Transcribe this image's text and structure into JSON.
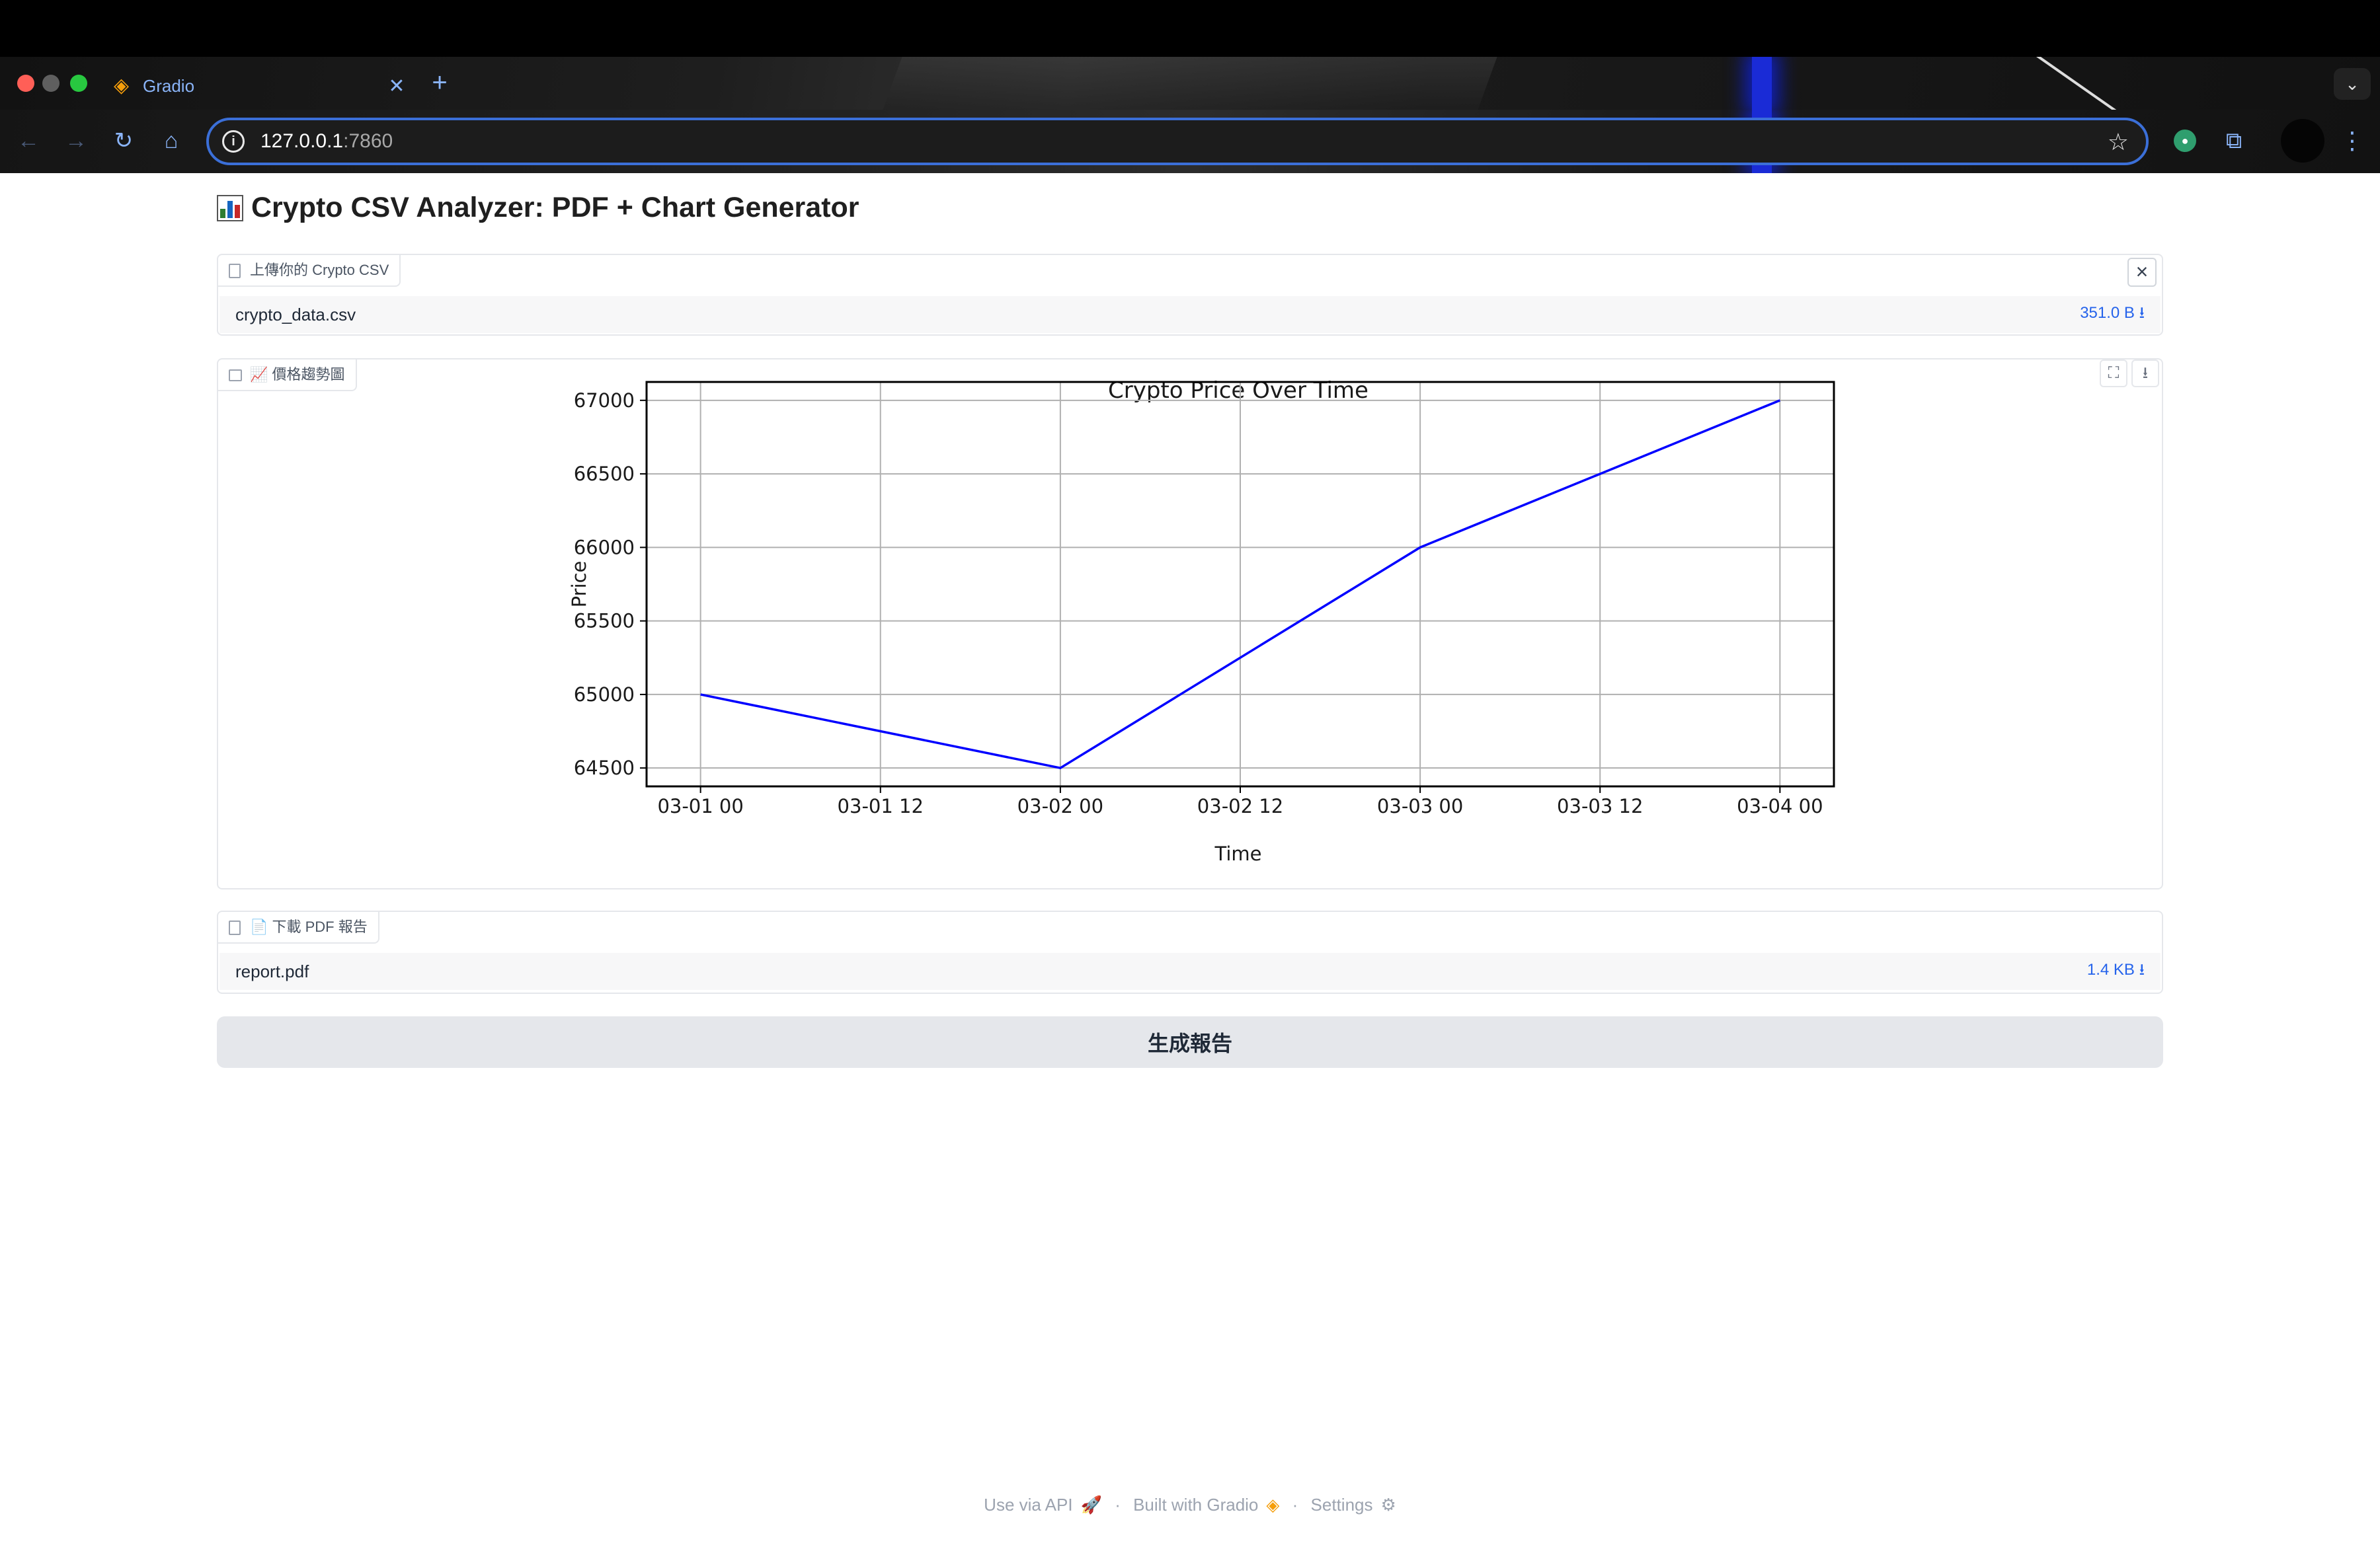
{
  "browser": {
    "tab_title": "Gradio",
    "url_host": "127.0.0.1",
    "url_port": ":7860"
  },
  "app": {
    "title": "Crypto CSV Analyzer: PDF + Chart Generator"
  },
  "upload": {
    "label": "上傳你的 Crypto CSV",
    "file_name": "crypto_data.csv",
    "file_size": "351.0 B ⭳"
  },
  "plot": {
    "label": "📈 價格趨勢圖"
  },
  "report": {
    "label": "📄 下載 PDF 報告",
    "file_name": "report.pdf",
    "file_size": "1.4 KB ⭳"
  },
  "generate_button": {
    "label": "生成報告"
  },
  "footer": {
    "api": "Use via API",
    "built": "Built with Gradio",
    "settings": "Settings",
    "sep": "·"
  },
  "colors": {
    "line": "#0000ff",
    "grid": "#b0b0b0",
    "link": "#2563eb"
  },
  "chart_data": {
    "type": "line",
    "title": "Crypto Price Over Time",
    "xlabel": "Time",
    "ylabel": "Price",
    "x": [
      "03-01 00",
      "03-02 00",
      "03-03 00",
      "03-03 12",
      "03-04 00"
    ],
    "x_hours": [
      0,
      24,
      48,
      60,
      72
    ],
    "values": [
      65000,
      64500,
      66000,
      66500,
      67000
    ],
    "x_ticks": [
      "03-01 00",
      "03-01 12",
      "03-02 00",
      "03-02 12",
      "03-03 00",
      "03-03 12",
      "03-04 00"
    ],
    "y_ticks": [
      64500,
      65000,
      65500,
      66000,
      66500,
      67000
    ],
    "xlim_hours": [
      -3.6,
      75.6
    ],
    "ylim": [
      64375,
      67125
    ],
    "grid": true,
    "legend": "none"
  }
}
